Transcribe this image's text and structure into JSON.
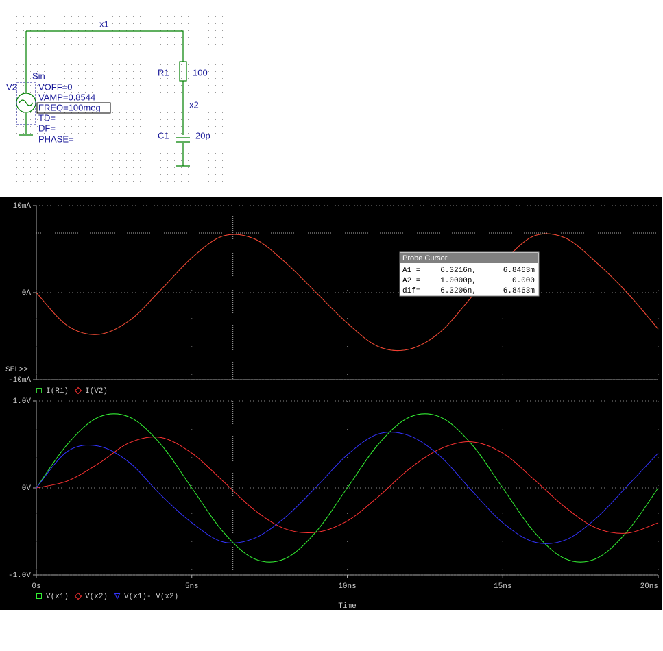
{
  "schematic": {
    "nets": [
      "x1",
      "x2"
    ],
    "resistor": {
      "name": "R1",
      "value": "100"
    },
    "capacitor": {
      "name": "C1",
      "value": "20p"
    },
    "source": {
      "name": "V2",
      "kind": "Sin",
      "params": [
        "VOFF=0",
        "VAMP=0.8544",
        "FREQ=100meg",
        "TD=",
        "DF=",
        "PHASE="
      ]
    }
  },
  "probe_cursor": {
    "title": "Probe Cursor",
    "rows": [
      [
        "A1 =",
        "6.3216n,",
        "6.8463m"
      ],
      [
        "A2 =",
        "1.0000p,",
        "0.000"
      ],
      [
        "dif=",
        "6.3206n,",
        "6.8463m"
      ]
    ]
  },
  "chart_data": [
    {
      "type": "line",
      "annotation": "SEL>>",
      "x": [
        0,
        1,
        2,
        3,
        4,
        5,
        6,
        7,
        8,
        9,
        10,
        11,
        12,
        13,
        14,
        15,
        16,
        17,
        18,
        19,
        20
      ],
      "xlim": [
        0,
        20
      ],
      "ylim": [
        -10,
        10
      ],
      "yticks": [
        {
          "value": 10,
          "label": "10mA"
        },
        {
          "value": 0,
          "label": "0A"
        },
        {
          "value": -10,
          "label": "-10mA"
        }
      ],
      "grid": true,
      "cursor": {
        "x": 6.3216,
        "y": 6.8463
      },
      "series": [
        {
          "name": "I(R1)",
          "color": "#33cc33",
          "marker": "square",
          "values": [
            0,
            -3.8,
            -4.8,
            -3.2,
            0.3,
            4.0,
            6.5,
            6.2,
            3.5,
            0,
            -3.5,
            -6.2,
            -6.5,
            -4.5,
            -0.5,
            3.5,
            6.5,
            6.3,
            3.5,
            0,
            -4.2
          ]
        },
        {
          "name": "I(V2)",
          "color": "#ff3333",
          "marker": "diamond",
          "values": [
            0,
            -3.8,
            -4.8,
            -3.2,
            0.3,
            4.0,
            6.5,
            6.2,
            3.5,
            0,
            -3.5,
            -6.2,
            -6.5,
            -4.5,
            -0.5,
            3.5,
            6.5,
            6.3,
            3.5,
            0,
            -4.2
          ]
        }
      ]
    },
    {
      "type": "line",
      "x_label": "Time",
      "x": [
        0,
        1,
        2,
        3,
        4,
        5,
        6,
        7,
        8,
        9,
        10,
        11,
        12,
        13,
        14,
        15,
        16,
        17,
        18,
        19,
        20
      ],
      "xlim": [
        0,
        20
      ],
      "xticks": [
        {
          "value": 0,
          "label": "0s"
        },
        {
          "value": 5,
          "label": "5ns"
        },
        {
          "value": 10,
          "label": "10ns"
        },
        {
          "value": 15,
          "label": "15ns"
        },
        {
          "value": 20,
          "label": "20ns"
        }
      ],
      "ylim": [
        -1,
        1
      ],
      "yticks": [
        {
          "value": 1,
          "label": "1.0V"
        },
        {
          "value": 0,
          "label": "0V"
        },
        {
          "value": -1,
          "label": "-1.0V"
        }
      ],
      "grid": true,
      "series": [
        {
          "name": "V(x1)",
          "color": "#33ee33",
          "marker": "square",
          "values": [
            0,
            0.502,
            0.813,
            0.813,
            0.502,
            0,
            -0.502,
            -0.813,
            -0.813,
            -0.502,
            0,
            0.502,
            0.813,
            0.813,
            0.502,
            0,
            -0.502,
            -0.813,
            -0.813,
            -0.502,
            0
          ]
        },
        {
          "name": "V(x2)",
          "color": "#ff3333",
          "marker": "diamond",
          "values": [
            0,
            0.08,
            0.28,
            0.52,
            0.58,
            0.4,
            0.08,
            -0.25,
            -0.47,
            -0.51,
            -0.38,
            -0.1,
            0.22,
            0.45,
            0.53,
            0.4,
            0.1,
            -0.22,
            -0.46,
            -0.52,
            -0.4
          ]
        },
        {
          "name": "V(x1)- V(x2)",
          "color": "#3333ff",
          "marker": "triangle",
          "values": [
            0,
            0.42,
            0.48,
            0.29,
            -0.08,
            -0.4,
            -0.62,
            -0.58,
            -0.34,
            0.01,
            0.38,
            0.62,
            0.6,
            0.36,
            -0.03,
            -0.4,
            -0.62,
            -0.6,
            -0.35,
            0.02,
            0.4
          ]
        }
      ]
    }
  ]
}
